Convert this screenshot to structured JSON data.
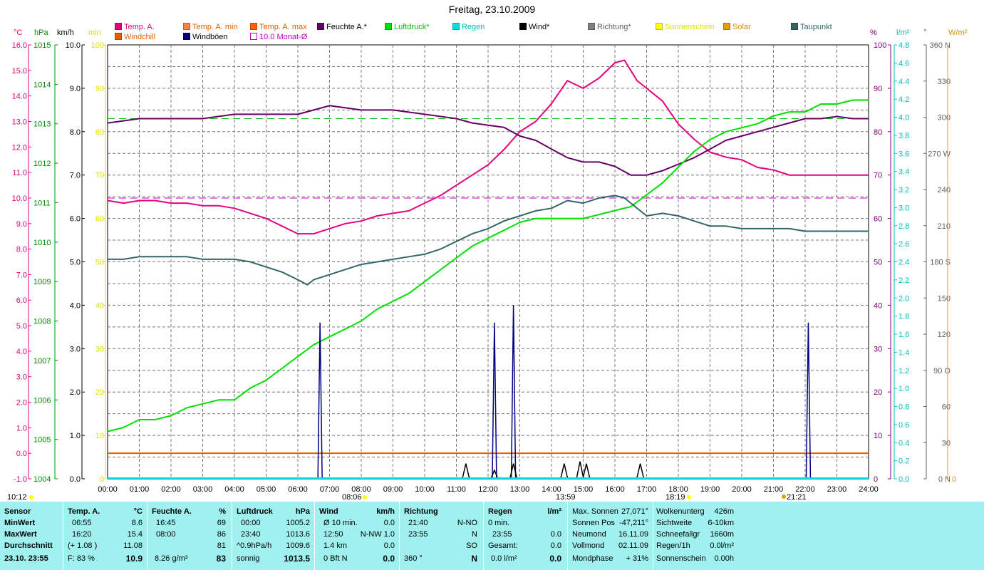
{
  "title": "Freitag, 23.10.2009",
  "legend": [
    {
      "label": "Temp. A.",
      "color": "#e6007e"
    },
    {
      "label": "Temp. A. min",
      "color": "#ff8040"
    },
    {
      "label": "Temp. A. max",
      "color": "#ff6000"
    },
    {
      "label": "Feuchte A.*",
      "color": "#660066"
    },
    {
      "label": "Luftdruck*",
      "color": "#00e000"
    },
    {
      "label": "Regen",
      "color": "#00e0e0"
    },
    {
      "label": "Wind*",
      "color": "#000000"
    },
    {
      "label": "Richtung*",
      "color": "#808080"
    },
    {
      "label": "Sonnenschein",
      "color": "#ffff00"
    },
    {
      "label": "Solar",
      "color": "#e0a000"
    },
    {
      "label": "Taupunkt",
      "color": "#336666"
    },
    {
      "label": "Windchill",
      "color": "#e06000"
    },
    {
      "label": "Windböen",
      "color": "#000080"
    },
    {
      "label": "10.0 Monat-Ø",
      "color": "#ffffff"
    }
  ],
  "axis_heads": {
    "c": "°C",
    "hpa": "hPa",
    "kmh": "km/h",
    "min": "min",
    "pct": "%",
    "lm2": "l/m²",
    "deg": "°",
    "wm2": "W/m²"
  },
  "chart_data": {
    "type": "line",
    "title": "Freitag, 23.10.2009",
    "x_ticks": [
      "00:00",
      "01:00",
      "02:00",
      "03:00",
      "04:00",
      "05:00",
      "06:00",
      "07:00",
      "08:00",
      "09:00",
      "10:00",
      "11:00",
      "12:00",
      "13:00",
      "14:00",
      "15:00",
      "16:00",
      "17:00",
      "18:00",
      "19:00",
      "20:00",
      "21:00",
      "22:00",
      "23:00",
      "24:00"
    ],
    "axes": {
      "temp_c": {
        "ticks": [
          "16.0",
          "15.0",
          "14.0",
          "13.0",
          "12.0",
          "11.0",
          "10.0",
          "9.0",
          "8.0",
          "7.0",
          "6.0",
          "5.0",
          "4.0",
          "3.0",
          "2.0",
          "1.0",
          "0.0",
          "-1.0"
        ],
        "range": [
          -1,
          16
        ],
        "color": "#e6007e"
      },
      "pressure_hpa": {
        "ticks": [
          "1015",
          "1014",
          "1013",
          "1012",
          "1011",
          "1010",
          "1009",
          "1008",
          "1007",
          "1006",
          "1005",
          "1004"
        ],
        "range": [
          1004,
          1015
        ],
        "color": "#009000"
      },
      "wind_kmh": {
        "ticks": [
          "10.0",
          "9.0",
          "8.0",
          "7.0",
          "6.0",
          "5.0",
          "4.0",
          "3.0",
          "2.0",
          "1.0",
          "0.0"
        ],
        "range": [
          0,
          10
        ],
        "color": "#000000"
      },
      "sun_min": {
        "ticks": [
          "100",
          "90",
          "80",
          "70",
          "60",
          "50",
          "40",
          "30",
          "20",
          "10",
          "0"
        ],
        "range": [
          0,
          100
        ],
        "color": "#e0e000"
      },
      "humidity_pct": {
        "ticks": [
          "100",
          "90",
          "80",
          "70",
          "60",
          "50",
          "40",
          "30",
          "20",
          "10",
          "0"
        ],
        "range": [
          0,
          100
        ],
        "color": "#800080"
      },
      "rain_lm2": {
        "ticks": [
          "4.8",
          "4.6",
          "4.4",
          "4.2",
          "4.0",
          "3.8",
          "3.6",
          "3.4",
          "3.2",
          "3.0",
          "2.8",
          "2.6",
          "2.4",
          "2.2",
          "2.0",
          "1.8",
          "1.6",
          "1.4",
          "1.2",
          "1.0",
          "0.8",
          "0.6",
          "0.4",
          "0.2",
          "0.0"
        ],
        "range": [
          0,
          5
        ],
        "color": "#00c0c0"
      },
      "direction_deg": {
        "ticks": [
          "360 N",
          "330",
          "300",
          "270 W",
          "240",
          "210",
          "180 S",
          "150",
          "120",
          "90  O",
          "60",
          "30",
          "0   N"
        ],
        "range": [
          0,
          360
        ],
        "color": "#606060"
      },
      "solar_wm2": {
        "ticks": [
          "0"
        ],
        "range": [
          0,
          0
        ],
        "color": "#e0a000"
      }
    },
    "reference_lines": [
      {
        "name": "Feuchte Monat-Ø",
        "axis": "humidity_pct",
        "value": 83,
        "color": "#00c000"
      },
      {
        "name": "Temp Monat-Ø",
        "axis": "temp_c",
        "value": 10.0,
        "color": "#c000c0"
      },
      {
        "name": "Windchill",
        "axis": "temp_c",
        "value": 0.0,
        "color": "#e06000"
      }
    ],
    "series": [
      {
        "name": "Temp. A.",
        "axis": "temp_c",
        "color": "#e6007e",
        "x": [
          0,
          0.5,
          1,
          1.5,
          2,
          2.5,
          3,
          3.5,
          4,
          4.5,
          5,
          5.5,
          6,
          6.5,
          7,
          7.5,
          8,
          8.5,
          9,
          9.5,
          10,
          10.5,
          11,
          11.5,
          12,
          12.5,
          13,
          13.5,
          14,
          14.5,
          15,
          15.5,
          16,
          16.3,
          16.7,
          17,
          17.5,
          18,
          18.5,
          19,
          19.5,
          20,
          20.5,
          21,
          21.5,
          22,
          22.5,
          23,
          23.5,
          24
        ],
        "y": [
          9.9,
          9.8,
          9.9,
          9.9,
          9.8,
          9.8,
          9.7,
          9.7,
          9.6,
          9.4,
          9.2,
          8.9,
          8.6,
          8.6,
          8.8,
          9.0,
          9.1,
          9.3,
          9.4,
          9.5,
          9.8,
          10.1,
          10.5,
          10.9,
          11.3,
          11.9,
          12.6,
          13.0,
          13.7,
          14.6,
          14.3,
          14.7,
          15.3,
          15.4,
          14.6,
          14.3,
          13.8,
          12.9,
          12.3,
          11.8,
          11.6,
          11.5,
          11.2,
          11.1,
          10.9,
          10.9,
          10.9,
          10.9,
          10.9,
          10.9
        ]
      },
      {
        "name": "Feuchte A.*",
        "axis": "humidity_pct",
        "color": "#660066",
        "x": [
          0,
          0.5,
          1,
          2,
          3,
          4,
          5,
          6,
          6.5,
          7,
          8,
          9,
          10,
          11,
          11.5,
          12,
          12.5,
          13,
          13.5,
          14,
          14.5,
          15,
          15.5,
          16,
          16.5,
          17,
          17.5,
          18,
          18.5,
          19,
          19.5,
          20,
          20.5,
          21,
          21.5,
          22,
          22.5,
          23,
          23.5,
          24
        ],
        "y": [
          82,
          82.5,
          83,
          83,
          83,
          84,
          84,
          84,
          85,
          86,
          85,
          85,
          84,
          83,
          82,
          81.5,
          81,
          79,
          78,
          76,
          74,
          73,
          73,
          72,
          70,
          70,
          71,
          72.5,
          74,
          76,
          78,
          79,
          80,
          81,
          82,
          83,
          83,
          83.5,
          83,
          83
        ]
      },
      {
        "name": "Luftdruck*",
        "axis": "pressure_hpa",
        "color": "#00e000",
        "x": [
          0,
          0.5,
          1,
          1.5,
          2,
          2.5,
          3,
          3.5,
          4,
          4.5,
          5,
          5.5,
          6,
          6.5,
          7,
          7.5,
          8,
          8.5,
          9,
          9.5,
          10,
          10.5,
          11,
          11.5,
          12,
          12.5,
          13,
          13.5,
          14,
          14.5,
          15,
          15.5,
          16,
          16.5,
          17,
          17.5,
          18,
          18.5,
          19,
          19.5,
          20,
          20.5,
          21,
          21.5,
          22,
          22.5,
          23,
          23.5,
          24
        ],
        "y": [
          1005.2,
          1005.3,
          1005.5,
          1005.5,
          1005.6,
          1005.8,
          1005.9,
          1006.0,
          1006.0,
          1006.3,
          1006.5,
          1006.8,
          1007.1,
          1007.4,
          1007.6,
          1007.8,
          1008.0,
          1008.3,
          1008.5,
          1008.7,
          1009.0,
          1009.3,
          1009.6,
          1009.9,
          1010.1,
          1010.3,
          1010.5,
          1010.6,
          1010.6,
          1010.6,
          1010.6,
          1010.7,
          1010.8,
          1010.9,
          1011.2,
          1011.5,
          1011.9,
          1012.3,
          1012.6,
          1012.8,
          1012.9,
          1013.0,
          1013.2,
          1013.3,
          1013.3,
          1013.5,
          1013.5,
          1013.6,
          1013.6
        ]
      },
      {
        "name": "Taupunkt",
        "axis": "temp_c",
        "color": "#336666",
        "x": [
          0,
          0.5,
          1,
          1.5,
          2,
          2.5,
          3,
          3.5,
          4,
          4.5,
          5,
          5.5,
          6,
          6.3,
          6.5,
          7,
          7.5,
          8,
          8.5,
          9,
          9.5,
          10,
          10.5,
          11,
          11.5,
          12,
          12.5,
          13,
          13.5,
          14,
          14.5,
          15,
          15.5,
          16,
          16.3,
          16.5,
          17,
          17.5,
          18,
          18.5,
          19,
          19.5,
          20,
          20.5,
          21,
          21.5,
          22,
          22.5,
          23,
          23.5,
          24
        ],
        "y": [
          7.6,
          7.6,
          7.7,
          7.7,
          7.7,
          7.7,
          7.6,
          7.6,
          7.6,
          7.5,
          7.3,
          7.1,
          6.8,
          6.6,
          6.8,
          7.0,
          7.2,
          7.4,
          7.5,
          7.6,
          7.7,
          7.8,
          8.0,
          8.3,
          8.6,
          8.8,
          9.1,
          9.3,
          9.5,
          9.6,
          9.9,
          9.8,
          10.0,
          10.1,
          10.0,
          9.8,
          9.3,
          9.4,
          9.3,
          9.1,
          8.9,
          8.9,
          8.8,
          8.8,
          8.8,
          8.8,
          8.7,
          8.7,
          8.7,
          8.7,
          8.7
        ]
      },
      {
        "name": "Windböen",
        "axis": "wind_kmh",
        "color": "#000080",
        "peaks": [
          [
            6.7,
            3.6
          ],
          [
            12.2,
            3.6
          ],
          [
            12.8,
            4.0
          ],
          [
            22.1,
            3.6
          ]
        ]
      },
      {
        "name": "Wind*",
        "axis": "wind_kmh",
        "color": "#000000",
        "peaks": [
          [
            11.3,
            0.35
          ],
          [
            12.2,
            0.2
          ],
          [
            12.8,
            0.35
          ],
          [
            14.4,
            0.35
          ],
          [
            14.9,
            0.4
          ],
          [
            15.1,
            0.35
          ],
          [
            16.8,
            0.35
          ]
        ]
      },
      {
        "name": "Regen",
        "axis": "rain_lm2",
        "color": "#00e0e0",
        "constant": 0
      }
    ]
  },
  "time_marks": {
    "start": "10:12",
    "sunrise": "08:06",
    "midday": "13:59",
    "sunset": "18:19",
    "moon": "21:21"
  },
  "footer": {
    "sensor": {
      "h": "Sensor",
      "min": "MinWert",
      "max": "MaxWert",
      "avg": "Durchschnitt",
      "date": "23.10. 23:55"
    },
    "temp": {
      "h": "Temp. A.",
      "unit": "°C",
      "min_t": "06:55",
      "min_v": "8.6",
      "max_t": "16:20",
      "max_v": "15.4",
      "avg_d": "(+ 1.08 )",
      "avg_v": "11.08",
      "f": "F: 83 %",
      "cur": "10.9"
    },
    "hum": {
      "h": "Feuchte A.",
      "unit": "%",
      "min_t": "16:45",
      "min_v": "69",
      "max_t": "08:00",
      "max_v": "86",
      "avg_v": "81",
      "abs": "8.26 g/m³",
      "cur": "83"
    },
    "press": {
      "h": "Luftdruck",
      "unit": "hPa",
      "min_t": "00:00",
      "min_v": "1005.2",
      "max_t": "23:40",
      "max_v": "1013.6",
      "trend": "^0.9hPa/h",
      "avg_v": "1009.6",
      "state": "sonnig",
      "cur": "1013.5"
    },
    "wind": {
      "h": "Wind",
      "unit": "km/h",
      "r1a": "Ø 10 min.",
      "r1b": "0.0",
      "r2a": "12:50",
      "r2b": "N-NW 1.0",
      "r3a": "1.4 km",
      "r3b": "0.0",
      "r4a": "0 Bft N",
      "r4b": "0.0"
    },
    "dir": {
      "h": "Richtung",
      "r1a": "21:40",
      "r1b": "N-NO",
      "r2a": "23:55",
      "r2b": "N",
      "r3b": "SO",
      "r4a": "360 °",
      "r4b": "N"
    },
    "rain": {
      "h": "Regen",
      "unit": "l/m²",
      "r1": "0 min.",
      "r2a": "23:55",
      "r2b": "0.0",
      "r3a": "Gesamt:",
      "r3b": "0.0",
      "r4a": "0.0 l/m²",
      "r4b": "0.0"
    },
    "astro": {
      "r1a": "Max. Sonnen",
      "r1b": "27,071°",
      "r2a": "Sonnen Pos",
      "r2b": "-47,211°",
      "r3a": "Neumond",
      "r3b": "16.11.09",
      "r4a": "Vollmond",
      "r4b": "02.11.09",
      "r5a": "Mondphase",
      "r5b": "+ 31%"
    },
    "misc": {
      "r1a": "Wolkenunterg",
      "r1b": "426m",
      "r2a": "Sichtweite",
      "r2b": "6-10km",
      "r3a": "Schneefallgr",
      "r3b": "1660m",
      "r4a": "Regen/1h",
      "r4b": "0.0l/m²",
      "r5a": "Sonnenschein",
      "r5b": "0.00h"
    }
  }
}
